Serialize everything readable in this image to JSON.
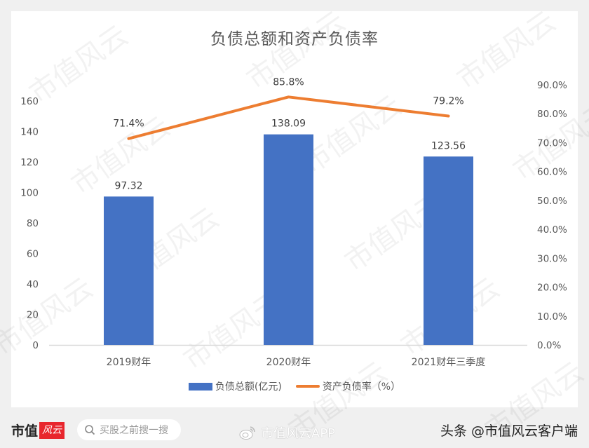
{
  "title": "负债总额和资产负债率",
  "chart_data": {
    "type": "bar",
    "title": "负债总额和资产负债率",
    "categories": [
      "2019财年",
      "2020财年",
      "2021财年三季度"
    ],
    "series": [
      {
        "name": "负债总额(亿元)",
        "type": "bar",
        "axis": "left",
        "color": "#4472c4",
        "values": [
          97.32,
          138.09,
          123.56
        ],
        "labels": [
          "97.32",
          "138.09",
          "123.56"
        ]
      },
      {
        "name": "资产负债率（%）",
        "type": "line",
        "axis": "right",
        "color": "#ed7d31",
        "values": [
          71.4,
          85.8,
          79.2
        ],
        "labels": [
          "71.4%",
          "85.8%",
          "79.2%"
        ]
      }
    ],
    "left_axis": {
      "ylim": [
        0,
        160
      ],
      "ticks": [
        "0",
        "20",
        "40",
        "60",
        "80",
        "100",
        "120",
        "140",
        "160"
      ]
    },
    "right_axis": {
      "ylim": [
        0,
        90
      ],
      "ticks": [
        "0.0%",
        "10.0%",
        "20.0%",
        "30.0%",
        "40.0%",
        "50.0%",
        "60.0%",
        "70.0%",
        "80.0%",
        "90.0%"
      ]
    },
    "xlabel": "",
    "ylabel": "",
    "grid": false,
    "legend_position": "bottom"
  },
  "legend": {
    "bar_label": "负债总额(亿元)",
    "line_label": "资产负债率（%）"
  },
  "footer": {
    "brand": "市值",
    "brand_red": "风云",
    "search_placeholder": "买股之前搜一搜",
    "weibo_text": "市值风云APP",
    "toutiao_text": "头条 @市值风云客户端"
  },
  "watermark": "市值风云",
  "colors": {
    "bar": "#4472c4",
    "line": "#ed7d31",
    "axis_text": "#595959"
  }
}
